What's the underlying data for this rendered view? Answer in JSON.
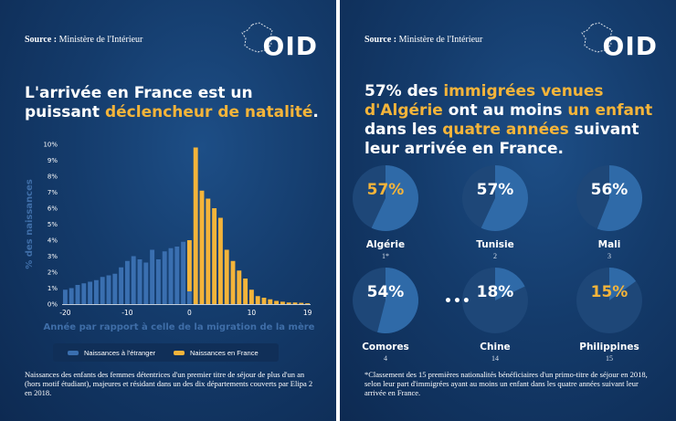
{
  "left": {
    "source_label": "Source :",
    "source_value": "Ministère de l'Intérieur",
    "logo_text": "OID",
    "headline_part1": "L'arrivée en France est un puissant ",
    "headline_accent": "déclencheur de natalité",
    "headline_part2": ".",
    "legend": [
      {
        "label": "Naissances à l'étranger",
        "color": "#3a6fb0"
      },
      {
        "label": "Naissances en France",
        "color": "#f4b43a"
      }
    ],
    "footnote": "Naissances des enfants des femmes détentrices d'un premier titre de séjour de plus d'un an (hors motif étudiant), majeures et résidant dans un des dix départements couverts par Elipa 2 en 2018."
  },
  "right": {
    "source_label": "Source :",
    "source_value": "Ministère de l'Intérieur",
    "logo_text": "OID",
    "headline": [
      {
        "text": "57% des ",
        "accent": false
      },
      {
        "text": "immigrées venues d'Algérie",
        "accent": true
      },
      {
        "text": " ont au moins ",
        "accent": false
      },
      {
        "text": "un enfant",
        "accent": true
      },
      {
        "text": " dans les ",
        "accent": false
      },
      {
        "text": "quatre années",
        "accent": true
      },
      {
        "text": " suivant leur arrivée en France.",
        "accent": false
      }
    ],
    "ellipsis": "•••",
    "footnote": "*Classement des 15 premières nationalités bénéficiaires d'un primo-titre de séjour en 2018, selon leur part d'immigrées ayant au moins un enfant dans les quatre années suivant leur arrivée en France."
  },
  "chart_data": [
    {
      "type": "bar",
      "title": "",
      "xlabel": "Année par rapport à celle de la migration de la mère",
      "ylabel": "% des naissances",
      "xlim": [
        -20,
        19
      ],
      "ylim": [
        0,
        10
      ],
      "x_ticks": [
        -20,
        -10,
        0,
        10,
        19
      ],
      "y_ticks": [
        "0%",
        "1%",
        "2%",
        "3%",
        "4%",
        "5%",
        "6%",
        "7%",
        "8%",
        "9%",
        "10%"
      ],
      "legend_position": "bottom",
      "series": [
        {
          "name": "Naissances à l'étranger",
          "color": "#3a6fb0",
          "x": [
            -20,
            -19,
            -18,
            -17,
            -16,
            -15,
            -14,
            -13,
            -12,
            -11,
            -10,
            -9,
            -8,
            -7,
            -6,
            -5,
            -4,
            -3,
            -2,
            -1,
            0
          ],
          "values": [
            0.9,
            1.0,
            1.2,
            1.3,
            1.4,
            1.5,
            1.7,
            1.8,
            1.9,
            2.3,
            2.7,
            3.0,
            2.8,
            2.6,
            3.4,
            2.8,
            3.3,
            3.5,
            3.6,
            3.9,
            0.8
          ]
        },
        {
          "name": "Naissances en France",
          "color": "#f4b43a",
          "x": [
            0,
            1,
            2,
            3,
            4,
            5,
            6,
            7,
            8,
            9,
            10,
            11,
            12,
            13,
            14,
            15,
            16,
            17,
            18,
            19
          ],
          "values": [
            4.0,
            9.8,
            7.1,
            6.6,
            6.0,
            5.4,
            3.4,
            2.7,
            2.1,
            1.6,
            0.9,
            0.5,
            0.4,
            0.3,
            0.2,
            0.15,
            0.1,
            0.1,
            0.08,
            0.05
          ]
        }
      ]
    },
    {
      "type": "pie",
      "title": "",
      "slices_note_unit": "%",
      "items": [
        {
          "name": "Algérie",
          "rank": "1*",
          "value": 57,
          "highlight": true
        },
        {
          "name": "Tunisie",
          "rank": "2",
          "value": 57,
          "highlight": false
        },
        {
          "name": "Mali",
          "rank": "3",
          "value": 56,
          "highlight": false
        },
        {
          "name": "Comores",
          "rank": "4",
          "value": 54,
          "highlight": false
        },
        {
          "name": "Chine",
          "rank": "14",
          "value": 18,
          "highlight": false
        },
        {
          "name": "Philippines",
          "rank": "15",
          "value": 15,
          "highlight": true
        }
      ],
      "colors": {
        "filled": "#2f6aa8",
        "remaining": "#1e4778",
        "accent_text": "#f4b43a",
        "text": "#ffffff"
      }
    }
  ]
}
